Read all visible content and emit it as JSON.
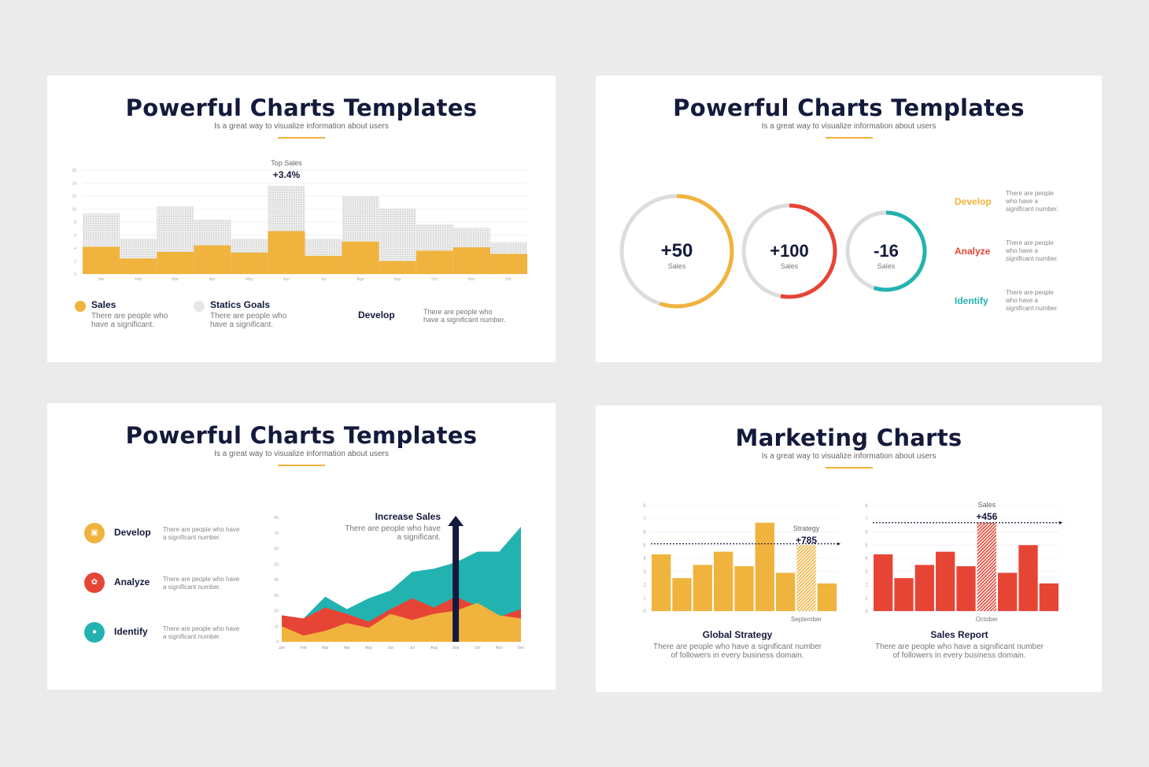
{
  "slides": [
    {
      "title": "Powerful Charts Templates",
      "subtitle": "Is a great way to visualize information about users",
      "annotation": {
        "label": "Top Sales",
        "value": "+3.4%"
      },
      "legend": [
        {
          "label": "Sales",
          "desc1": "There are people who",
          "desc2": "have a significant."
        },
        {
          "label": "Statics Goals",
          "desc1": "There are people who",
          "desc2": "have a significant."
        }
      ],
      "develop": {
        "label": "Develop",
        "desc1": "There are people who",
        "desc2": "have a significant number."
      }
    },
    {
      "title": "Powerful Charts Templates",
      "subtitle": "Is a great way to visualize information about users",
      "rings": [
        {
          "value": "+50",
          "label": "Sales",
          "color": "#f0b33d"
        },
        {
          "value": "+100",
          "label": "Sales",
          "color": "#e64536"
        },
        {
          "value": "-16",
          "label": "Sales",
          "color": "#22b3b0"
        }
      ],
      "items": [
        {
          "label": "Develop",
          "color": "#f0b33d",
          "d1": "There are people",
          "d2": "who have a",
          "d3": "significant number."
        },
        {
          "label": "Analyze",
          "color": "#e64536",
          "d1": "There are people",
          "d2": "who have a",
          "d3": "significant number."
        },
        {
          "label": "Identify",
          "color": "#22b3b0",
          "d1": "There are people",
          "d2": "who have a",
          "d3": "significant number."
        }
      ]
    },
    {
      "title": "Powerful Charts Templates",
      "subtitle": "Is a great way to visualize information about users",
      "items": [
        {
          "label": "Develop",
          "icon": "cube-icon",
          "color": "#f0b33d",
          "d1": "There are people who have",
          "d2": "a significant number."
        },
        {
          "label": "Analyze",
          "icon": "brain-icon",
          "color": "#e64536",
          "d1": "There are people who have",
          "d2": "a significant number."
        },
        {
          "label": "Identify",
          "icon": "users-icon",
          "color": "#22b3b0",
          "d1": "There are people who have",
          "d2": "a significant number."
        }
      ],
      "annotation": {
        "label": "Increase Sales",
        "d1": "There are people who have",
        "d2": "a significant."
      }
    },
    {
      "title": "Marketing Charts",
      "subtitle": "Is a great way to visualize information about users",
      "left": {
        "ann_label": "Strategy",
        "ann_value": "+785",
        "month": "September",
        "title": "Global Strategy",
        "d1": "There are people who have a significant number",
        "d2": "of followers in every business domain."
      },
      "right": {
        "ann_label": "Sales",
        "ann_value": "+456",
        "month": "October",
        "title": "Sales Report",
        "d1": "There are people who have a significant number",
        "d2": "of followers in every business domain."
      }
    }
  ],
  "chart_data": [
    {
      "type": "bar",
      "title": "Powerful Charts Templates",
      "categories": [
        "Jan",
        "Feb",
        "Mar",
        "Apr",
        "May",
        "Jun",
        "Jul",
        "Ago",
        "Sep",
        "Oct",
        "Nov",
        "Dic"
      ],
      "series": [
        {
          "name": "Sales",
          "values": [
            4.2,
            2.4,
            3.4,
            4.4,
            3.3,
            6.6,
            2.8,
            5.0,
            2.0,
            3.6,
            4.1,
            3.1
          ],
          "color": "#f0b33d"
        },
        {
          "name": "Statics Goals",
          "values": [
            9.3,
            5.4,
            10.4,
            8.4,
            5.4,
            13.6,
            5.4,
            12.0,
            10.1,
            7.7,
            7.1,
            4.9
          ],
          "color": "#d8d8d8"
        }
      ],
      "ylim": [
        0,
        16
      ],
      "yticks": [
        0,
        2,
        4,
        6,
        8,
        10,
        12,
        14,
        16
      ],
      "annotation": "Top Sales +3.4%"
    },
    {
      "type": "pie",
      "title": "Ring progress",
      "categories": [
        "Develop",
        "Analyze",
        "Identify"
      ],
      "values": [
        50,
        100,
        -16
      ],
      "fill_fraction": [
        0.55,
        0.53,
        0.55
      ]
    },
    {
      "type": "area",
      "title": "Increase Sales",
      "categories": [
        "Jan",
        "Feb",
        "Mar",
        "Apr",
        "May",
        "Jun",
        "Jul",
        "Aug",
        "Sep",
        "Oct",
        "Nov",
        "Dec"
      ],
      "series": [
        {
          "name": "Develop",
          "values": [
            10,
            4,
            7,
            12,
            9,
            18,
            14,
            18,
            20,
            25,
            17,
            15
          ],
          "color": "#f0b33d"
        },
        {
          "name": "Analyze",
          "values": [
            17,
            15,
            22,
            18,
            13,
            21,
            28,
            22,
            29,
            23,
            16,
            21
          ],
          "color": "#e64536"
        },
        {
          "name": "Identify",
          "values": [
            17,
            15,
            29,
            21,
            28,
            33,
            45,
            47,
            51,
            58,
            58,
            74
          ],
          "color": "#22b3b0"
        }
      ],
      "ylim": [
        0,
        80
      ],
      "yticks": [
        0,
        10,
        20,
        30,
        40,
        50,
        60,
        70,
        80
      ],
      "marker": {
        "category": "Sep",
        "type": "arrow"
      }
    },
    {
      "type": "bar",
      "title": "Global Strategy",
      "categories": [
        "1",
        "2",
        "3",
        "4",
        "5",
        "6",
        "7",
        "September",
        "9"
      ],
      "values": [
        4.3,
        2.5,
        3.5,
        4.5,
        3.4,
        6.7,
        2.9,
        5.0,
        2.1
      ],
      "highlight": "September",
      "reference_line": 5.1,
      "ylim": [
        0,
        8
      ],
      "annotation": "Strategy +785",
      "color": "#f0b33d"
    },
    {
      "type": "bar",
      "title": "Sales Report",
      "categories": [
        "1",
        "2",
        "3",
        "4",
        "5",
        "October",
        "7",
        "8",
        "9"
      ],
      "values": [
        4.3,
        2.5,
        3.5,
        4.5,
        3.4,
        6.7,
        2.9,
        5.0,
        2.1
      ],
      "highlight": "October",
      "reference_line": 6.7,
      "ylim": [
        0,
        8
      ],
      "annotation": "Sales +456",
      "color": "#e64536"
    }
  ]
}
